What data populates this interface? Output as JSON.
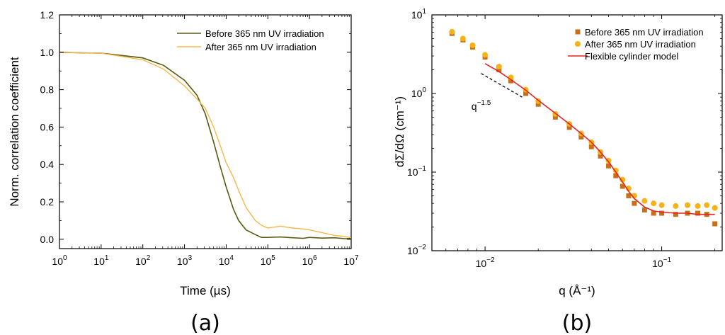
{
  "chart_data": [
    {
      "type": "line",
      "panel_label": "(a)",
      "xlabel": "Time (µs)",
      "ylabel": "Norm. correlation coefficient",
      "xscale": "log",
      "xlim": [
        1,
        10000000
      ],
      "ylim": [
        -0.05,
        1.2
      ],
      "x_tick_labels": [
        {
          "base": "10",
          "exp": "0"
        },
        {
          "base": "10",
          "exp": "1"
        },
        {
          "base": "10",
          "exp": "2"
        },
        {
          "base": "10",
          "exp": "3"
        },
        {
          "base": "10",
          "exp": "4"
        },
        {
          "base": "10",
          "exp": "5"
        },
        {
          "base": "10",
          "exp": "6"
        },
        {
          "base": "10",
          "exp": "7"
        }
      ],
      "y_tick_labels": [
        "0.0",
        "0.2",
        "0.4",
        "0.6",
        "0.8",
        "1.0",
        "1.2"
      ],
      "legend_position": "top-right",
      "grid": false,
      "series": [
        {
          "name": "Before 365 nm UV irradiation",
          "color": "#5a5a12",
          "x": [
            1,
            10,
            100,
            316,
            1000,
            2000,
            3162,
            5000,
            7000,
            10000,
            15000,
            20000,
            30000,
            50000,
            70000,
            100000,
            200000,
            400000,
            700000,
            1000000,
            2000000,
            4000000,
            7000000,
            10000000
          ],
          "y": [
            1.0,
            0.995,
            0.97,
            0.93,
            0.85,
            0.77,
            0.67,
            0.52,
            0.4,
            0.28,
            0.16,
            0.1,
            0.05,
            0.025,
            0.01,
            0.01,
            0.012,
            0.008,
            0.005,
            0.01,
            0.006,
            0.008,
            0.003,
            0.004
          ]
        },
        {
          "name": "After 365 nm UV irradiation",
          "color": "#f7b84a",
          "x": [
            1,
            10,
            100,
            316,
            1000,
            2000,
            3162,
            5000,
            7000,
            10000,
            15000,
            20000,
            30000,
            50000,
            70000,
            100000,
            200000,
            400000,
            700000,
            1000000,
            2000000,
            4000000,
            7000000,
            10000000
          ],
          "y": [
            1.0,
            0.995,
            0.96,
            0.91,
            0.82,
            0.75,
            0.7,
            0.6,
            0.51,
            0.41,
            0.33,
            0.26,
            0.17,
            0.1,
            0.075,
            0.06,
            0.07,
            0.06,
            0.055,
            0.05,
            0.035,
            0.02,
            0.015,
            0.008
          ]
        }
      ]
    },
    {
      "type": "scatter",
      "panel_label": "(b)",
      "xlabel": "q (Å⁻¹)",
      "ylabel": "dΣ/dΩ (cm⁻¹)",
      "xscale": "log",
      "yscale": "log",
      "xlim": [
        0.005,
        0.22
      ],
      "ylim": [
        0.01,
        10
      ],
      "x_tick_labels": [
        {
          "base": "10",
          "exp": "-2"
        },
        {
          "base": "10",
          "exp": "-1"
        }
      ],
      "y_tick_labels": [
        {
          "base": "10",
          "exp": "-2"
        },
        {
          "base": "10",
          "exp": "-1"
        },
        {
          "base": "10",
          "exp": "0"
        },
        {
          "base": "10",
          "exp": "1"
        }
      ],
      "annotation": {
        "base": "q",
        "exp": "-1.5"
      },
      "legend_position": "top-right",
      "grid": false,
      "series": [
        {
          "name": "Before 365 nm UV irradiation",
          "marker": "square",
          "color": "#c7701a",
          "x": [
            0.0065,
            0.0075,
            0.0085,
            0.01,
            0.012,
            0.014,
            0.017,
            0.02,
            0.025,
            0.03,
            0.035,
            0.04,
            0.045,
            0.05,
            0.055,
            0.06,
            0.065,
            0.07,
            0.08,
            0.09,
            0.1,
            0.12,
            0.14,
            0.16,
            0.18,
            0.2
          ],
          "y": [
            5.8,
            4.8,
            3.9,
            2.9,
            2.0,
            1.45,
            1.0,
            0.73,
            0.5,
            0.37,
            0.28,
            0.21,
            0.16,
            0.12,
            0.09,
            0.066,
            0.05,
            0.04,
            0.033,
            0.03,
            0.03,
            0.029,
            0.03,
            0.03,
            0.029,
            0.022
          ]
        },
        {
          "name": "After 365 nm UV irradiation",
          "marker": "circle",
          "color": "#f5b316",
          "x": [
            0.0065,
            0.0075,
            0.0085,
            0.01,
            0.012,
            0.014,
            0.017,
            0.02,
            0.025,
            0.03,
            0.035,
            0.04,
            0.045,
            0.05,
            0.055,
            0.06,
            0.065,
            0.07,
            0.08,
            0.09,
            0.1,
            0.12,
            0.14,
            0.16,
            0.18,
            0.2
          ],
          "y": [
            6.1,
            5.0,
            4.1,
            3.1,
            2.2,
            1.6,
            1.12,
            0.8,
            0.55,
            0.41,
            0.31,
            0.24,
            0.18,
            0.14,
            0.105,
            0.08,
            0.062,
            0.05,
            0.043,
            0.04,
            0.038,
            0.037,
            0.038,
            0.037,
            0.038,
            0.035
          ]
        },
        {
          "name": "Flexible cylinder model",
          "marker": "line",
          "color": "#e8231f",
          "x": [
            0.01,
            0.012,
            0.014,
            0.017,
            0.02,
            0.025,
            0.03,
            0.035,
            0.04,
            0.045,
            0.05,
            0.055,
            0.06,
            0.065,
            0.07,
            0.08,
            0.09,
            0.1,
            0.12,
            0.14,
            0.16,
            0.18,
            0.2
          ],
          "y": [
            2.4,
            1.9,
            1.5,
            1.1,
            0.82,
            0.56,
            0.41,
            0.31,
            0.24,
            0.18,
            0.135,
            0.1,
            0.075,
            0.057,
            0.046,
            0.036,
            0.032,
            0.031,
            0.03,
            0.03,
            0.029,
            0.029,
            0.029
          ]
        }
      ]
    }
  ]
}
